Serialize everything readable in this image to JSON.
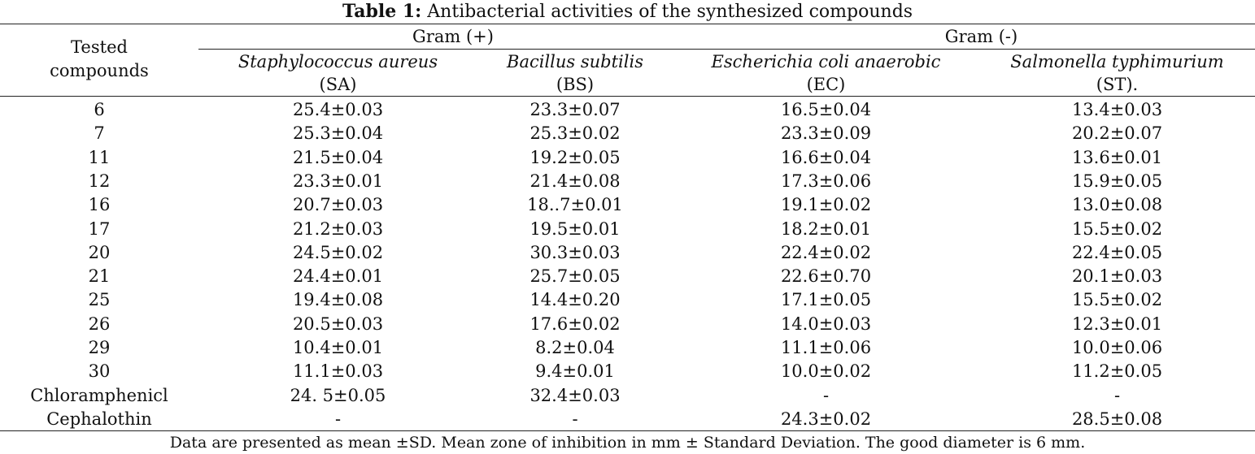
{
  "caption": {
    "lead": "Table 1:",
    "text": " Antibacterial activities of the synthesized compounds"
  },
  "header": {
    "tested_compounds_line1": "Tested",
    "tested_compounds_line2": "compounds",
    "gram_positive": "Gram (+)",
    "gram_negative": "Gram (-)",
    "organisms": [
      {
        "name": "Staphylococcus aureus",
        "abbr": "(SA)"
      },
      {
        "name": "Bacillus subtilis",
        "abbr": "(BS)"
      },
      {
        "name": "Escherichia coli anaerobic",
        "abbr": "(EC)"
      },
      {
        "name": "Salmonella typhimurium",
        "abbr": "(ST)."
      }
    ]
  },
  "rows": [
    {
      "compound": "6",
      "sa": "25.4±0.03",
      "bs": "23.3±0.07",
      "ec": "16.5±0.04",
      "st": "13.4±0.03"
    },
    {
      "compound": "7",
      "sa": "25.3±0.04",
      "bs": "25.3±0.02",
      "ec": "23.3±0.09",
      "st": "20.2±0.07"
    },
    {
      "compound": "11",
      "sa": "21.5±0.04",
      "bs": "19.2±0.05",
      "ec": "16.6±0.04",
      "st": "13.6±0.01"
    },
    {
      "compound": "12",
      "sa": "23.3±0.01",
      "bs": "21.4±0.08",
      "ec": "17.3±0.06",
      "st": "15.9±0.05"
    },
    {
      "compound": "16",
      "sa": "20.7±0.03",
      "bs": "18..7±0.01",
      "ec": "19.1±0.02",
      "st": "13.0±0.08"
    },
    {
      "compound": "17",
      "sa": "21.2±0.03",
      "bs": "19.5±0.01",
      "ec": "18.2±0.01",
      "st": "15.5±0.02"
    },
    {
      "compound": "20",
      "sa": "24.5±0.02",
      "bs": "30.3±0.03",
      "ec": "22.4±0.02",
      "st": "22.4±0.05"
    },
    {
      "compound": "21",
      "sa": "24.4±0.01",
      "bs": "25.7±0.05",
      "ec": "22.6±0.70",
      "st": "20.1±0.03"
    },
    {
      "compound": "25",
      "sa": "19.4±0.08",
      "bs": "14.4±0.20",
      "ec": "17.1±0.05",
      "st": "15.5±0.02"
    },
    {
      "compound": "26",
      "sa": "20.5±0.03",
      "bs": "17.6±0.02",
      "ec": "14.0±0.03",
      "st": "12.3±0.01"
    },
    {
      "compound": "29",
      "sa": "10.4±0.01",
      "bs": "8.2±0.04",
      "ec": "11.1±0.06",
      "st": "10.0±0.06"
    },
    {
      "compound": "30",
      "sa": "11.1±0.03",
      "bs": "9.4±0.01",
      "ec": "10.0±0.02",
      "st": "11.2±0.05"
    },
    {
      "compound": "Chloramphenicl",
      "sa": "24. 5±0.05",
      "bs": "32.4±0.03",
      "ec": "-",
      "st": "-"
    },
    {
      "compound": "Cephalothin",
      "sa": "-",
      "bs": "-",
      "ec": "24.3±0.02",
      "st": "28.5±0.08"
    }
  ],
  "footnote": "Data are presented as mean ±SD. Mean zone of inhibition in mm ± Standard Deviation. The good diameter is 6 mm."
}
